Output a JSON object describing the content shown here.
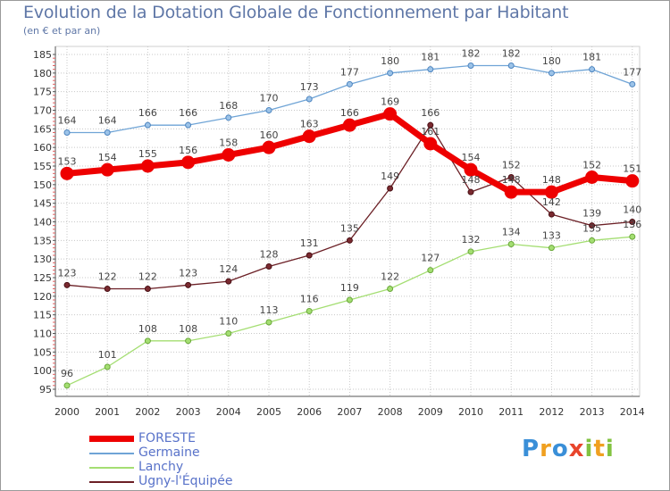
{
  "chart_data": {
    "type": "line",
    "title": "Evolution de la Dotation Globale de Fonctionnement par Habitant",
    "subtitle": "(en € et par an)",
    "x": [
      "2000",
      "2001",
      "2002",
      "2003",
      "2004",
      "2005",
      "2006",
      "2007",
      "2008",
      "2009",
      "2010",
      "2011",
      "2012",
      "2013",
      "2014"
    ],
    "ylim": [
      95,
      185
    ],
    "yticks": [
      95,
      100,
      105,
      110,
      115,
      120,
      125,
      130,
      135,
      140,
      145,
      150,
      155,
      160,
      165,
      170,
      175,
      180,
      185
    ],
    "series": [
      {
        "name": "FORESTE",
        "color": "#ee0000",
        "values": [
          153,
          154,
          155,
          156,
          158,
          160,
          163,
          166,
          169,
          161,
          154,
          148,
          148,
          152,
          151
        ]
      },
      {
        "name": "Germaine",
        "color": "#6fa4d6",
        "values": [
          164,
          164,
          166,
          166,
          168,
          170,
          173,
          177,
          180,
          181,
          182,
          182,
          180,
          181,
          177
        ]
      },
      {
        "name": "Lanchy",
        "color": "#a4de72",
        "values": [
          96,
          101,
          108,
          108,
          110,
          113,
          116,
          119,
          122,
          127,
          132,
          134,
          133,
          135,
          136
        ]
      },
      {
        "name": "Ugny-l'Équipée",
        "color": "#6b1f25",
        "values": [
          123,
          122,
          122,
          123,
          124,
          128,
          131,
          135,
          149,
          166,
          148,
          152,
          142,
          139,
          140
        ]
      }
    ]
  },
  "logo": {
    "letters": [
      "P",
      "r",
      "o",
      "x",
      "i",
      "t",
      "i"
    ],
    "colors": [
      "#3a8fd8",
      "#f0a020",
      "#3a8fd8",
      "#e8452c",
      "#82c341",
      "#f0a020",
      "#82c341"
    ]
  }
}
